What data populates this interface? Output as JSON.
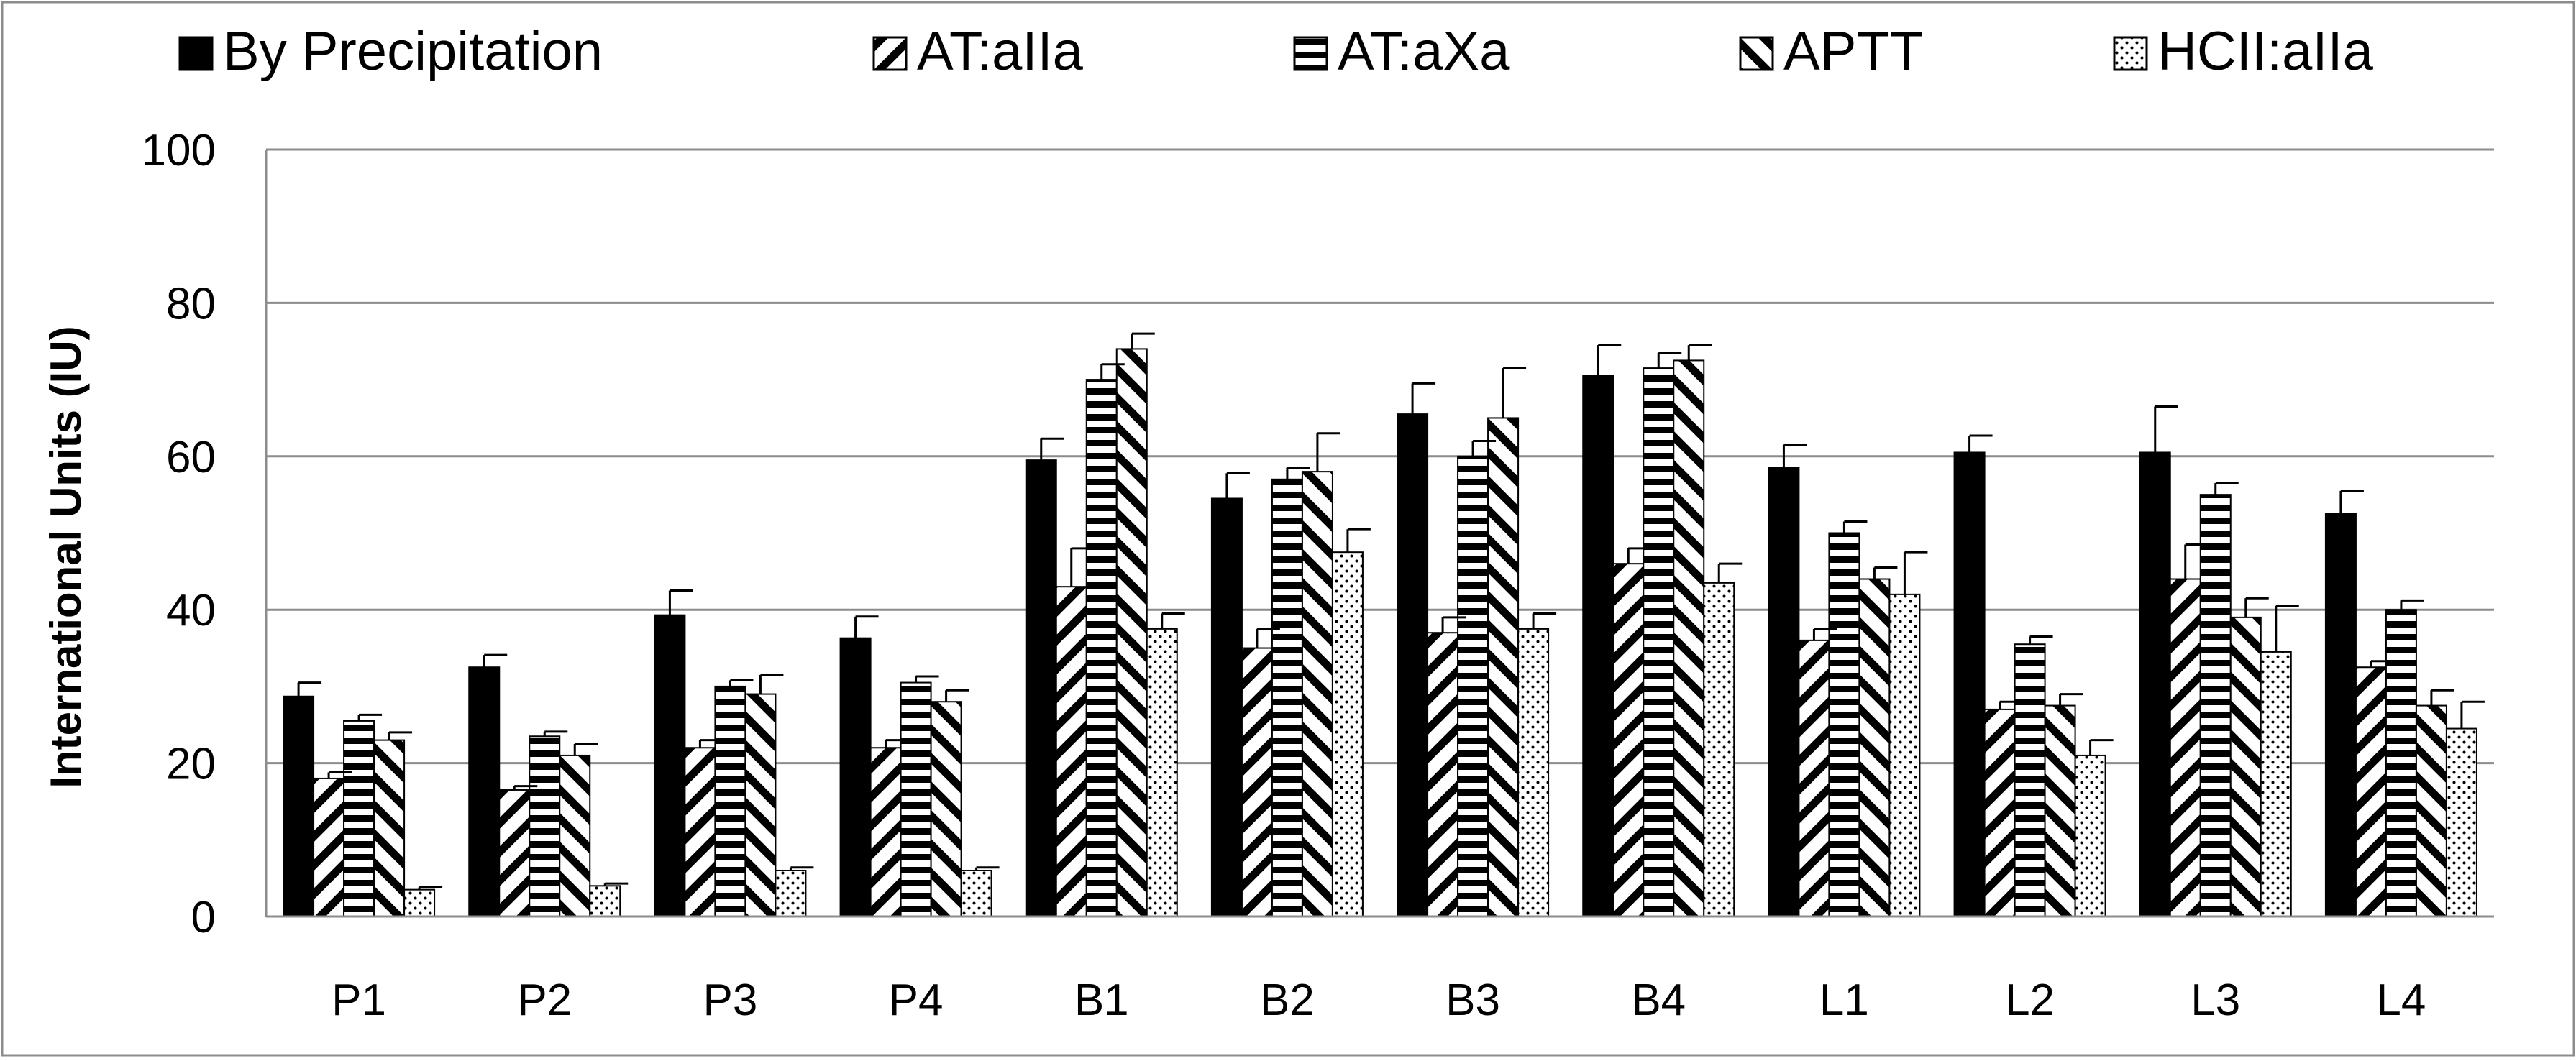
{
  "chart_data": {
    "type": "bar",
    "title": "",
    "xlabel": "",
    "ylabel": "International Units (IU)",
    "ylim": [
      0,
      100
    ],
    "yticks": [
      0,
      20,
      40,
      60,
      80,
      100
    ],
    "grid": true,
    "legend_position": "top",
    "categories": [
      "P1",
      "P2",
      "P3",
      "P4",
      "B1",
      "B2",
      "B3",
      "B4",
      "L1",
      "L2",
      "L3",
      "L4"
    ],
    "series": [
      {
        "name": "By Precipitation",
        "pattern": "solid",
        "values": [
          28.7,
          32.5,
          39.3,
          36.3,
          59.5,
          54.5,
          65.5,
          70.5,
          58.5,
          60.5,
          60.5,
          52.5
        ],
        "errors": [
          1.8,
          1.6,
          3.2,
          2.8,
          2.8,
          3.3,
          4.0,
          4.0,
          3.0,
          2.2,
          6.0,
          3.0
        ]
      },
      {
        "name": "AT:aIIa",
        "pattern": "diagonal-up",
        "values": [
          18.0,
          16.5,
          22.0,
          22.0,
          43.0,
          35.0,
          37.0,
          46.0,
          36.0,
          27.0,
          44.0,
          32.5
        ],
        "errors": [
          0.8,
          0.5,
          1.0,
          1.0,
          5.0,
          2.5,
          2.0,
          2.0,
          1.5,
          1.0,
          4.5,
          0.8
        ]
      },
      {
        "name": "AT:aXa",
        "pattern": "horizontal",
        "values": [
          25.5,
          23.5,
          30.0,
          30.5,
          70.0,
          57.0,
          60.0,
          71.5,
          50.0,
          35.5,
          55.0,
          40.0
        ],
        "errors": [
          0.8,
          0.6,
          0.8,
          0.8,
          2.0,
          1.5,
          2.0,
          2.0,
          1.5,
          1.0,
          1.5,
          1.2
        ]
      },
      {
        "name": "APTT",
        "pattern": "diagonal-down",
        "values": [
          23.0,
          21.0,
          29.0,
          28.0,
          74.0,
          58.0,
          65.0,
          72.5,
          44.0,
          27.5,
          39.0,
          27.5
        ],
        "errors": [
          1.0,
          1.5,
          2.5,
          1.5,
          2.0,
          5.0,
          6.5,
          2.0,
          1.5,
          1.5,
          2.5,
          2.0
        ]
      },
      {
        "name": "HCII:aIIa",
        "pattern": "dots",
        "values": [
          3.5,
          4.0,
          6.0,
          6.0,
          37.5,
          47.5,
          37.5,
          43.5,
          42.0,
          21.0,
          34.5,
          24.5
        ],
        "errors": [
          0.3,
          0.3,
          0.4,
          0.4,
          2.0,
          3.0,
          2.0,
          2.5,
          5.5,
          2.0,
          6.0,
          3.5
        ]
      }
    ]
  }
}
